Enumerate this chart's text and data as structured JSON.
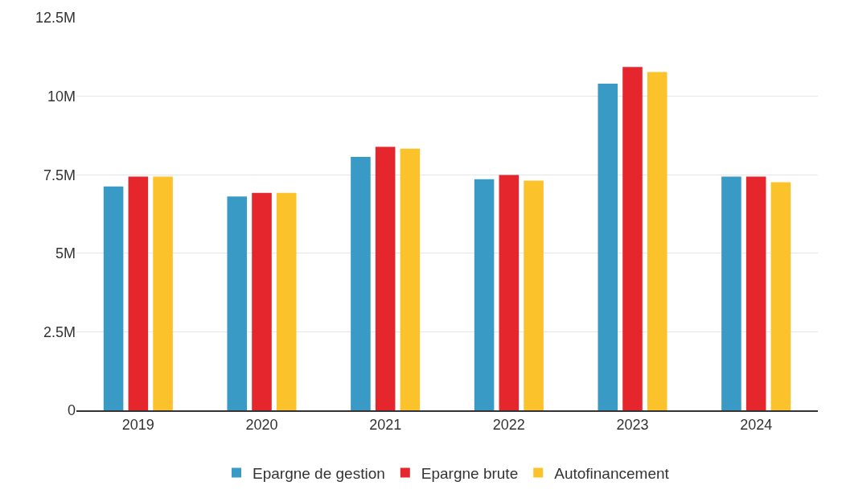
{
  "chart_data": {
    "type": "bar",
    "categories": [
      "2019",
      "2020",
      "2021",
      "2022",
      "2023",
      "2024"
    ],
    "series": [
      {
        "name": "Epargne de gestion",
        "color": "#3a9ac6",
        "values": [
          7130000,
          6810000,
          8070000,
          7360000,
          10400000,
          7440000
        ]
      },
      {
        "name": "Epargne brute",
        "color": "#e5262d",
        "values": [
          7440000,
          6920000,
          8390000,
          7490000,
          10930000,
          7440000
        ]
      },
      {
        "name": "Autofinancement",
        "color": "#fcc22c",
        "values": [
          7440000,
          6920000,
          8330000,
          7310000,
          10770000,
          7260000
        ]
      }
    ],
    "ylim": [
      0,
      12500000
    ],
    "yticks": [
      0,
      {
        "value": 2500000,
        "label": "2.5M"
      },
      {
        "value": 5000000,
        "label": "5M"
      },
      {
        "value": 7500000,
        "label": "7.5M"
      },
      {
        "value": 10000000,
        "label": "10M"
      },
      {
        "value": 12500000,
        "label": "12.5M"
      }
    ],
    "grid": "y",
    "legend": "bottom"
  }
}
